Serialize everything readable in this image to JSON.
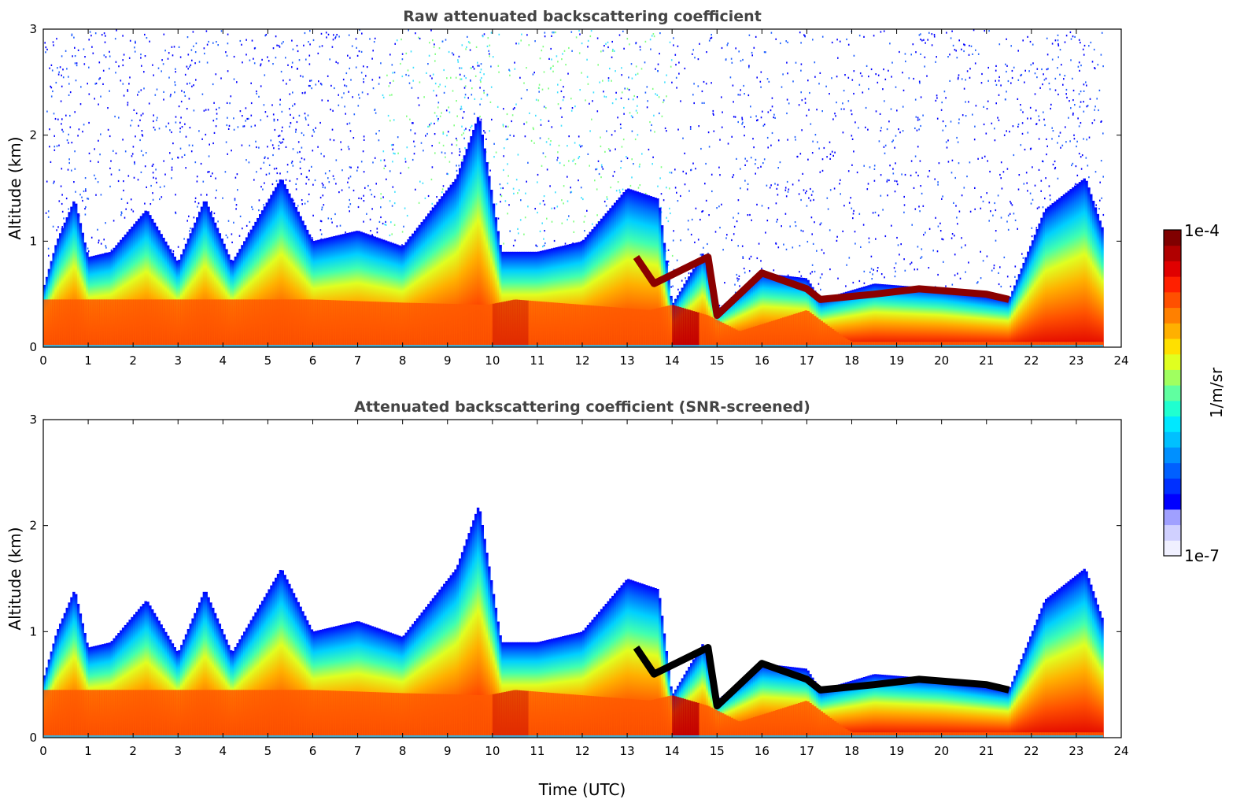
{
  "chart_data": [
    {
      "type": "heatmap",
      "title": "Raw attenuated backscattering coefficient",
      "xlabel": "",
      "ylabel": "Altitude (km)",
      "xlim": [
        0,
        24
      ],
      "ylim": [
        0,
        3
      ],
      "xticks": [
        "0",
        "1",
        "2",
        "3",
        "4",
        "5",
        "6",
        "7",
        "8",
        "9",
        "10",
        "11",
        "12",
        "13",
        "14",
        "15",
        "16",
        "17",
        "18",
        "19",
        "20",
        "21",
        "22",
        "23",
        "24"
      ],
      "yticks": [
        "0",
        "1",
        "2",
        "3"
      ],
      "data_end_hour": 23.6,
      "layer_top_km": [
        [
          0,
          0.55
        ],
        [
          0.3,
          1.0
        ],
        [
          0.7,
          1.4
        ],
        [
          1.0,
          0.85
        ],
        [
          1.5,
          0.9
        ],
        [
          2.3,
          1.3
        ],
        [
          3.0,
          0.8
        ],
        [
          3.6,
          1.4
        ],
        [
          4.2,
          0.8
        ],
        [
          5.3,
          1.6
        ],
        [
          6.0,
          1.0
        ],
        [
          7.0,
          1.1
        ],
        [
          8.0,
          0.95
        ],
        [
          9.2,
          1.6
        ],
        [
          9.7,
          2.2
        ],
        [
          10.2,
          0.9
        ],
        [
          11.0,
          0.9
        ],
        [
          12.0,
          1.0
        ],
        [
          13.0,
          1.5
        ],
        [
          13.7,
          1.4
        ],
        [
          14.0,
          0.4
        ],
        [
          14.7,
          0.9
        ],
        [
          15.0,
          0.35
        ],
        [
          16.0,
          0.7
        ],
        [
          17.0,
          0.65
        ],
        [
          17.3,
          0.45
        ],
        [
          18.5,
          0.6
        ],
        [
          20.0,
          0.55
        ],
        [
          21.5,
          0.45
        ],
        [
          22.3,
          1.3
        ],
        [
          23.2,
          1.6
        ],
        [
          23.6,
          1.1
        ]
      ],
      "surface_layer_km": [
        [
          0,
          0.45
        ],
        [
          2,
          0.45
        ],
        [
          4,
          0.45
        ],
        [
          6,
          0.45
        ],
        [
          8,
          0.42
        ],
        [
          9.9,
          0.4
        ],
        [
          10.5,
          0.45
        ],
        [
          12,
          0.4
        ],
        [
          13.5,
          0.35
        ],
        [
          14.0,
          0.4
        ],
        [
          14.8,
          0.3
        ],
        [
          15.5,
          0.15
        ],
        [
          17.0,
          0.35
        ],
        [
          17.8,
          0.1
        ],
        [
          18,
          0.05
        ],
        [
          24,
          0.05
        ]
      ],
      "cloud_layer_km": [
        [
          13.2,
          0.85
        ],
        [
          13.6,
          0.6
        ],
        [
          14.8,
          0.85
        ],
        [
          15.0,
          0.3
        ],
        [
          15.5,
          0.5
        ],
        [
          16.0,
          0.7
        ],
        [
          17.0,
          0.55
        ],
        [
          17.3,
          0.45
        ],
        [
          18.5,
          0.5
        ],
        [
          19.5,
          0.55
        ],
        [
          21.0,
          0.5
        ],
        [
          21.5,
          0.45
        ]
      ]
    },
    {
      "type": "heatmap",
      "title": "Attenuated backscattering coefficient (SNR-screened)",
      "xlabel": "Time (UTC)",
      "ylabel": "Altitude (km)",
      "xlim": [
        0,
        24
      ],
      "ylim": [
        0,
        3
      ],
      "xticks": [
        "0",
        "1",
        "2",
        "3",
        "4",
        "5",
        "6",
        "7",
        "8",
        "9",
        "10",
        "11",
        "12",
        "13",
        "14",
        "15",
        "16",
        "17",
        "18",
        "19",
        "20",
        "21",
        "22",
        "23",
        "24"
      ],
      "yticks": [
        "0",
        "1",
        "2",
        "3"
      ],
      "data_end_hour": 23.6,
      "screened": true
    }
  ],
  "colorbar": {
    "label": "1/m/sr",
    "max_label": "1e-4",
    "min_label": "1e-7",
    "colormap": "jet"
  }
}
